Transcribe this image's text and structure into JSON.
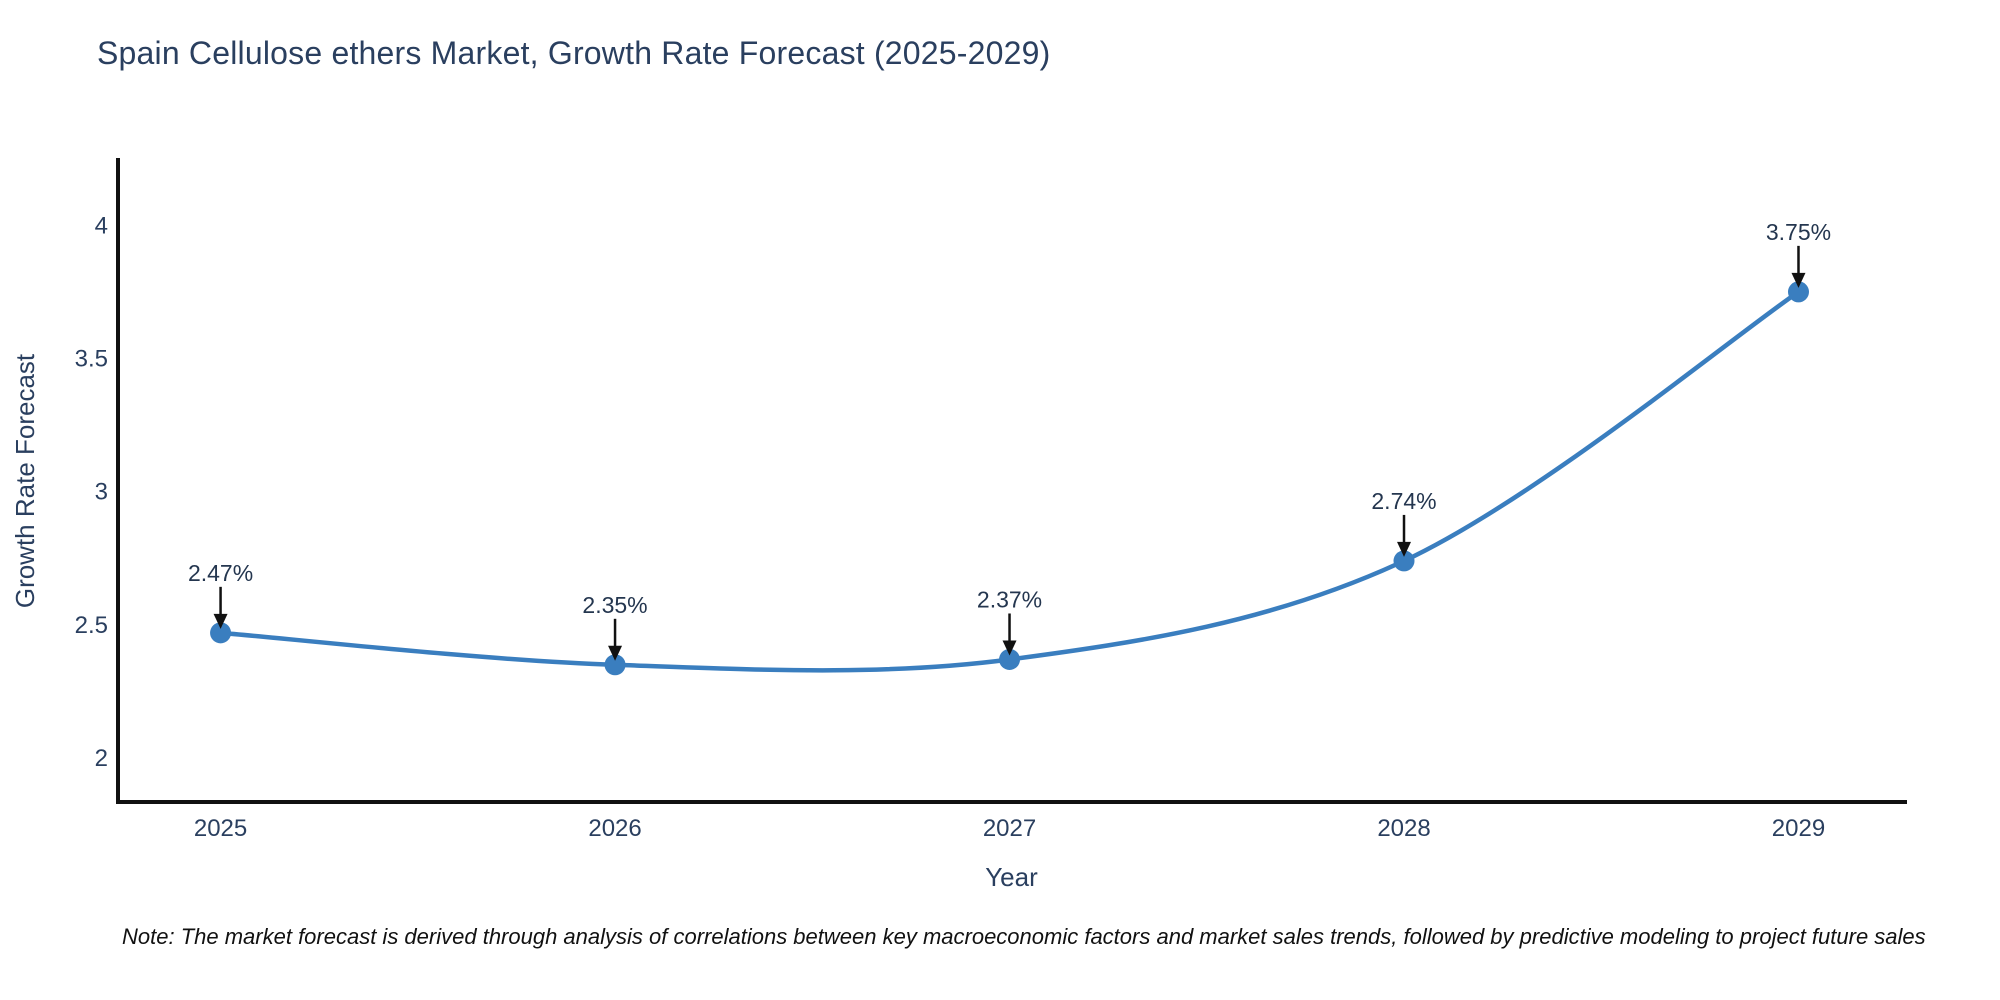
{
  "note": "Note: The market forecast is derived through analysis of correlations between key macroeconomic factors and market sales trends, followed by predictive modeling to project future sales",
  "chart_data": {
    "type": "line",
    "title": "Spain Cellulose ethers Market, Growth Rate Forecast (2025-2029)",
    "x": [
      2025,
      2026,
      2027,
      2028,
      2029
    ],
    "series": [
      {
        "name": "Growth Rate Forecast",
        "values": [
          2.47,
          2.35,
          2.37,
          2.74,
          3.75
        ]
      }
    ],
    "point_labels": [
      "2.47%",
      "2.35%",
      "2.37%",
      "2.74%",
      "3.75%"
    ],
    "xlabel": "Year",
    "ylabel": "Growth Rate Forecast",
    "xtick_labels": [
      "2025",
      "2026",
      "2027",
      "2028",
      "2029"
    ],
    "ytick_values": [
      2,
      2.5,
      3,
      3.5,
      4
    ],
    "ytick_labels": [
      "2",
      "2.5",
      "3",
      "3.5",
      "4"
    ],
    "xlim": [
      2024.74,
      2029.27
    ],
    "ylim": [
      1.835,
      4.245
    ],
    "line_shape": "spline",
    "grid": false,
    "legend_position": "none",
    "colors": {
      "line": "#3a7ebf",
      "marker": "#3a7ebf",
      "axis": "#111111",
      "arrow": "#111111",
      "text": "#2a3f5f"
    }
  }
}
